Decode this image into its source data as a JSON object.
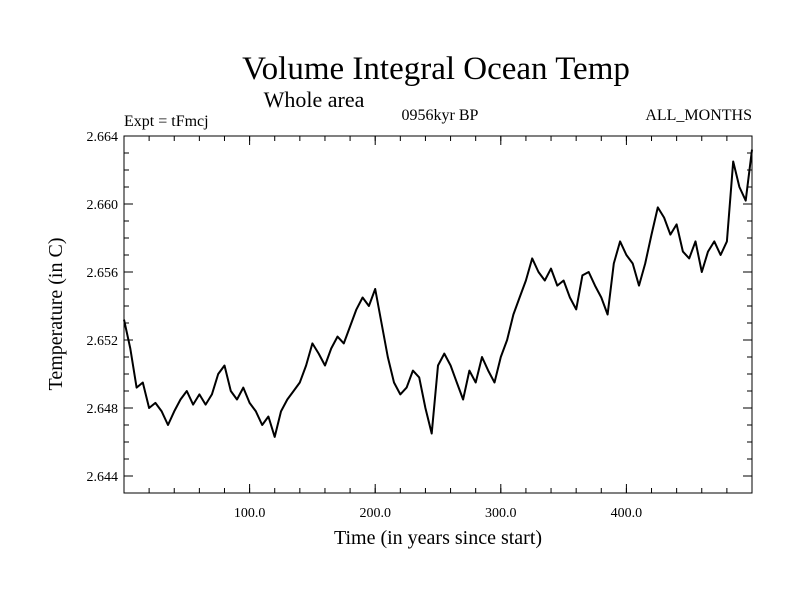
{
  "chart_data": {
    "type": "line",
    "title": "Volume Integral Ocean Temp",
    "subtitle": "Whole area",
    "annotations": {
      "left": "Expt = tFmcj",
      "center": "0956kyr BP",
      "right": "ALL_MONTHS"
    },
    "xlabel": "Time (in years since start)",
    "ylabel": "Temperature (in C)",
    "xlim": [
      0,
      500
    ],
    "ylim": [
      2.643,
      2.664
    ],
    "x_ticks": [
      100,
      200,
      300,
      400
    ],
    "x_tick_labels": [
      "100.0",
      "200.0",
      "300.0",
      "400.0"
    ],
    "y_ticks": [
      2.644,
      2.648,
      2.652,
      2.656,
      2.66,
      2.664
    ],
    "y_tick_labels": [
      "2.644",
      "2.648",
      "2.652",
      "2.656",
      "2.660",
      "2.664"
    ],
    "series": [
      {
        "name": "Volume Integral Ocean Temp",
        "color": "#000000",
        "x": [
          0,
          5,
          10,
          15,
          20,
          25,
          30,
          35,
          40,
          45,
          50,
          55,
          60,
          65,
          70,
          75,
          80,
          85,
          90,
          95,
          100,
          105,
          110,
          115,
          120,
          125,
          130,
          135,
          140,
          145,
          150,
          155,
          160,
          165,
          170,
          175,
          180,
          185,
          190,
          195,
          200,
          205,
          210,
          215,
          220,
          225,
          230,
          235,
          240,
          245,
          250,
          255,
          260,
          265,
          270,
          275,
          280,
          285,
          290,
          295,
          300,
          305,
          310,
          315,
          320,
          325,
          330,
          335,
          340,
          345,
          350,
          355,
          360,
          365,
          370,
          375,
          380,
          385,
          390,
          395,
          400,
          405,
          410,
          415,
          420,
          425,
          430,
          435,
          440,
          445,
          450,
          455,
          460,
          465,
          470,
          475,
          480,
          485,
          490,
          495,
          500
        ],
        "values": [
          2.6532,
          2.6515,
          2.6492,
          2.6495,
          2.648,
          2.6483,
          2.6478,
          2.647,
          2.6478,
          2.6485,
          2.649,
          2.6482,
          2.6488,
          2.6482,
          2.6488,
          2.65,
          2.6505,
          2.649,
          2.6485,
          2.6492,
          2.6483,
          2.6478,
          2.647,
          2.6475,
          2.6463,
          2.6478,
          2.6485,
          2.649,
          2.6495,
          2.6505,
          2.6518,
          2.6512,
          2.6505,
          2.6515,
          2.6522,
          2.6518,
          2.6528,
          2.6538,
          2.6545,
          2.654,
          2.655,
          2.653,
          2.651,
          2.6495,
          2.6488,
          2.6492,
          2.6502,
          2.6498,
          2.648,
          2.6465,
          2.6505,
          2.6512,
          2.6505,
          2.6495,
          2.6485,
          2.6502,
          2.6495,
          2.651,
          2.6502,
          2.6495,
          2.651,
          2.652,
          2.6535,
          2.6545,
          2.6555,
          2.6568,
          2.656,
          2.6555,
          2.6562,
          2.6552,
          2.6555,
          2.6545,
          2.6538,
          2.6558,
          2.656,
          2.6552,
          2.6545,
          2.6535,
          2.6565,
          2.6578,
          2.657,
          2.6565,
          2.6552,
          2.6565,
          2.6582,
          2.6598,
          2.6592,
          2.6582,
          2.6588,
          2.6572,
          2.6568,
          2.6578,
          2.656,
          2.6572,
          2.6578,
          2.657,
          2.6578,
          2.6625,
          2.661,
          2.6602,
          2.6632
        ]
      }
    ],
    "grid": false
  }
}
